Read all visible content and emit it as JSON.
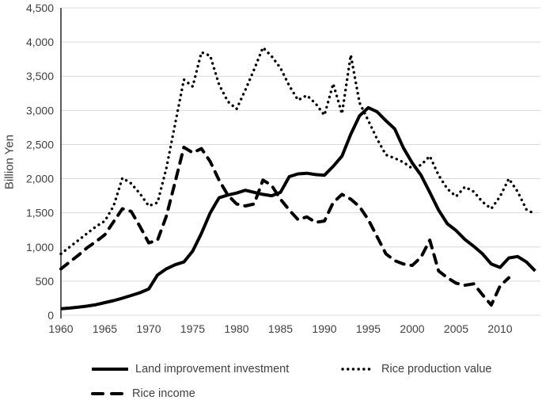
{
  "y_axis": {
    "label": "Billion Yen",
    "ticks": [
      "0",
      "500",
      "1,000",
      "1,500",
      "2,000",
      "2,500",
      "3,000",
      "3,500",
      "4,000",
      "4,500"
    ],
    "step": 500,
    "max": 4500
  },
  "x_axis": {
    "ticks": [
      "1960",
      "1965",
      "1970",
      "1975",
      "1980",
      "1985",
      "1990",
      "1995",
      "2000",
      "2005",
      "2010"
    ]
  },
  "legend": {
    "items": [
      {
        "label": "Land improvement investment",
        "style": "solid"
      },
      {
        "label": "Rice production value",
        "style": "dotted"
      },
      {
        "label": "Rice income",
        "style": "dashed"
      }
    ]
  },
  "colors": {
    "line": "#000000",
    "grid": "#d9d9d9",
    "text": "#3f3f3f",
    "axis": "#262626"
  },
  "chart_data": {
    "type": "line",
    "title": "",
    "xlabel": "",
    "ylabel": "Billion Yen",
    "ylim": [
      0,
      4500
    ],
    "grid": true,
    "legend_position": "bottom",
    "x": [
      1960,
      1961,
      1962,
      1963,
      1964,
      1965,
      1966,
      1967,
      1968,
      1969,
      1970,
      1971,
      1972,
      1973,
      1974,
      1975,
      1976,
      1977,
      1978,
      1979,
      1980,
      1981,
      1982,
      1983,
      1984,
      1985,
      1986,
      1987,
      1988,
      1989,
      1990,
      1991,
      1992,
      1993,
      1994,
      1995,
      1996,
      1997,
      1998,
      1999,
      2000,
      2001,
      2002,
      2003,
      2004,
      2005,
      2006,
      2007,
      2008,
      2009,
      2010,
      2011,
      2012,
      2013,
      2014
    ],
    "series": [
      {
        "name": "Land improvement investment",
        "style": "solid",
        "values": [
          95,
          105,
          120,
          135,
          155,
          185,
          215,
          250,
          290,
          330,
          385,
          590,
          680,
          740,
          780,
          940,
          1200,
          1500,
          1720,
          1760,
          1790,
          1830,
          1800,
          1770,
          1750,
          1800,
          2030,
          2070,
          2080,
          2060,
          2050,
          2180,
          2330,
          2650,
          2920,
          3040,
          2980,
          2850,
          2730,
          2450,
          2230,
          2050,
          1800,
          1540,
          1340,
          1240,
          1110,
          1010,
          900,
          750,
          700,
          840,
          860,
          780,
          650
        ]
      },
      {
        "name": "Rice production value",
        "style": "dotted",
        "values": [
          900,
          1000,
          1100,
          1200,
          1300,
          1380,
          1600,
          2010,
          1930,
          1780,
          1600,
          1650,
          2150,
          2800,
          3450,
          3350,
          3850,
          3800,
          3380,
          3130,
          3020,
          3300,
          3600,
          3920,
          3790,
          3620,
          3360,
          3150,
          3220,
          3100,
          2930,
          3390,
          2950,
          3810,
          3110,
          2850,
          2580,
          2350,
          2300,
          2240,
          2150,
          2200,
          2330,
          2050,
          1850,
          1740,
          1880,
          1810,
          1660,
          1560,
          1740,
          2000,
          1810,
          1550,
          1480
        ]
      },
      {
        "name": "Rice income",
        "style": "dashed",
        "values": [
          680,
          780,
          880,
          990,
          1080,
          1180,
          1370,
          1560,
          1520,
          1300,
          1060,
          1100,
          1450,
          1950,
          2460,
          2380,
          2440,
          2250,
          1980,
          1760,
          1630,
          1600,
          1630,
          1980,
          1900,
          1700,
          1540,
          1400,
          1440,
          1360,
          1380,
          1650,
          1770,
          1700,
          1590,
          1400,
          1150,
          900,
          800,
          750,
          730,
          850,
          1100,
          650,
          550,
          470,
          440,
          460,
          300,
          150,
          430,
          550,
          null,
          null,
          null
        ]
      }
    ]
  }
}
